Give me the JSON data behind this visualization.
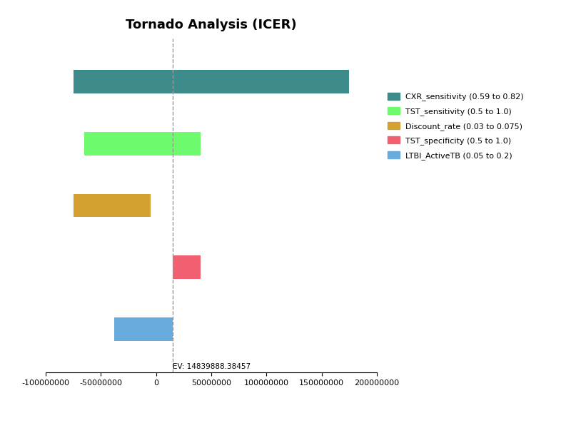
{
  "title": "Tornado Analysis (ICER)",
  "ev": 14839888.38457,
  "ev_label": "EV: 14839888.38457",
  "xlim": [
    -100000000,
    200000000
  ],
  "xticks": [
    -100000000,
    -50000000,
    0,
    50000000,
    100000000,
    150000000,
    200000000
  ],
  "bars": [
    {
      "label": "CXR_sensitivity (0.59 to 0.82)",
      "low": -75000000,
      "high": 175000000,
      "color": "#3d8b8b"
    },
    {
      "label": "TST_sensitivity (0.5 to 1.0)",
      "low": -65000000,
      "high": 40000000,
      "color": "#6dfa6d"
    },
    {
      "label": "Discount_rate (0.03 to 0.075)",
      "low": -75000000,
      "high": -5000000,
      "color": "#d4a030"
    },
    {
      "label": "TST_specificity (0.5 to 1.0)",
      "low": 14839888,
      "high": 40000000,
      "color": "#f06070"
    },
    {
      "label": "LTBI_ActiveTB (0.05 to 0.2)",
      "low": -38000000,
      "high": 14839888,
      "color": "#6aabdd"
    }
  ],
  "bar_height": 0.38,
  "background_color": "#ffffff",
  "dashed_line_color": "#999999",
  "title_fontsize": 13,
  "tick_fontsize": 8,
  "legend_fontsize": 8
}
